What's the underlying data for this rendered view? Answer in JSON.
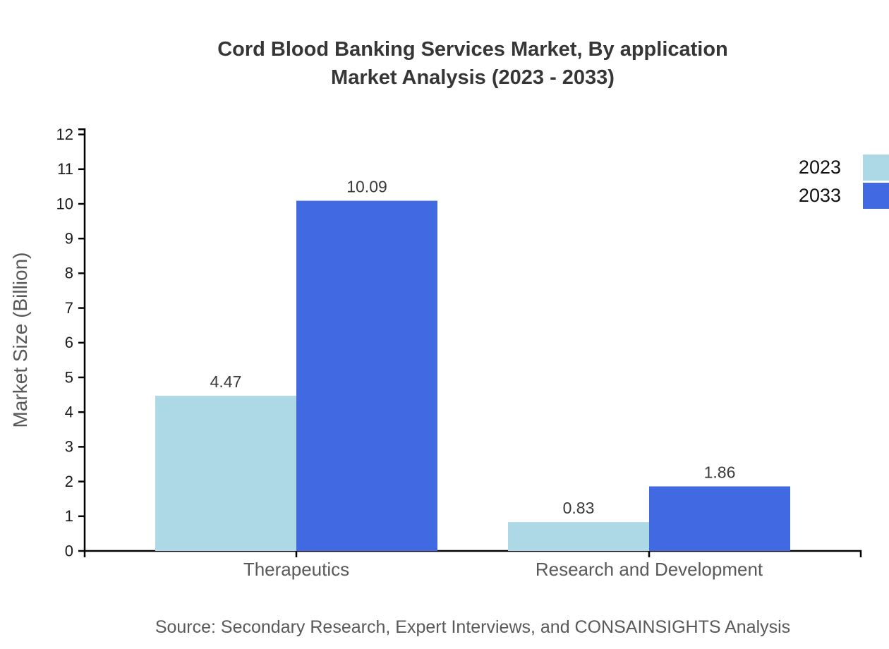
{
  "title": {
    "line1": "Cord Blood Banking Services Market, By application",
    "line2": "Market Analysis (2023 - 2033)"
  },
  "source": "Source: Secondary Research, Expert Interviews, and CONSAINSIGHTS Analysis",
  "chart_data": {
    "type": "bar",
    "title": "Cord Blood Banking Services Market, By application Market Analysis (2023 - 2033)",
    "categories": [
      "Therapeutics",
      "Research and Development"
    ],
    "series": [
      {
        "name": "2023",
        "color": "#ADD8E6",
        "values": [
          4.47,
          0.83
        ]
      },
      {
        "name": "2033",
        "color": "#4169E1",
        "values": [
          10.09,
          1.86
        ]
      }
    ],
    "xlabel": "",
    "ylabel": "Market Size (Billion)",
    "ylim": [
      0,
      12.15
    ],
    "yticks": [
      0,
      1,
      2,
      3,
      4,
      5,
      6,
      7,
      8,
      9,
      10,
      11,
      12
    ],
    "grid": false,
    "legend_position": "top-right",
    "bar_value_labels": true,
    "axis_color": "#000000",
    "tick_label_color": "#1a1a1a",
    "value_label_color": "#3a3a3a",
    "label_color": "#595959",
    "title_color": "#363636",
    "legend_label_color": "#111111"
  }
}
